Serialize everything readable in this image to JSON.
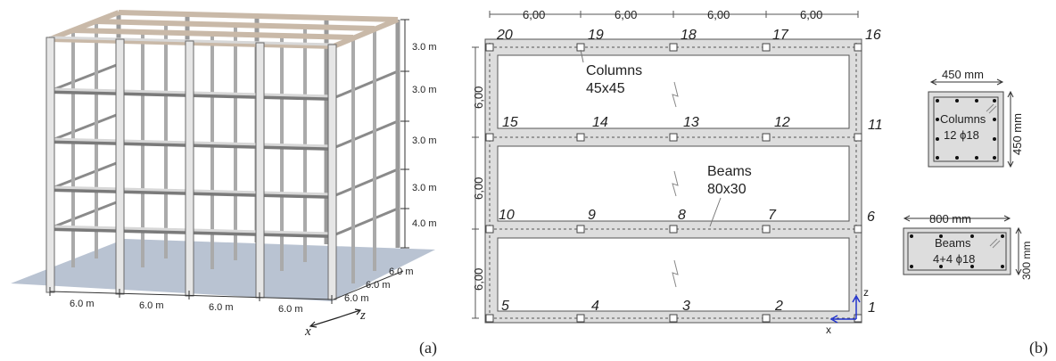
{
  "panel_a": {
    "label": "(a)",
    "story_heights": [
      "3.0 m",
      "3.0 m",
      "3.0 m",
      "3.0 m",
      "4.0 m"
    ],
    "x_spans": [
      "6.0 m",
      "6.0 m",
      "6.0 m",
      "6.0 m"
    ],
    "z_spans": [
      "6.0 m",
      "6.0 m",
      "6.0 m"
    ],
    "axis_x": "x",
    "axis_z": "z"
  },
  "panel_b": {
    "label": "(b)",
    "top_spans": [
      "6,00",
      "6,00",
      "6,00",
      "6,00"
    ],
    "left_spans": [
      "6,00",
      "6,00",
      "6,00"
    ],
    "row_top": [
      "20",
      "19",
      "18",
      "17",
      "16"
    ],
    "row_2": [
      "15",
      "14",
      "13",
      "12",
      "11"
    ],
    "row_3": [
      "10",
      "9",
      "8",
      "7",
      "6"
    ],
    "row_bottom": [
      "5",
      "4",
      "3",
      "2",
      "1"
    ],
    "columns_label": "Columns",
    "columns_size": "45x45",
    "beams_label": "Beams",
    "beams_size": "80x30",
    "axis_z": "z",
    "axis_x": "x"
  },
  "column_section": {
    "width": "450 mm",
    "height": "450 mm",
    "name": "Columns",
    "rebar": "12 ϕ18"
  },
  "beam_section": {
    "width": "800 mm",
    "height": "300 mm",
    "name": "Beams",
    "rebar": "4+4 ϕ18"
  }
}
